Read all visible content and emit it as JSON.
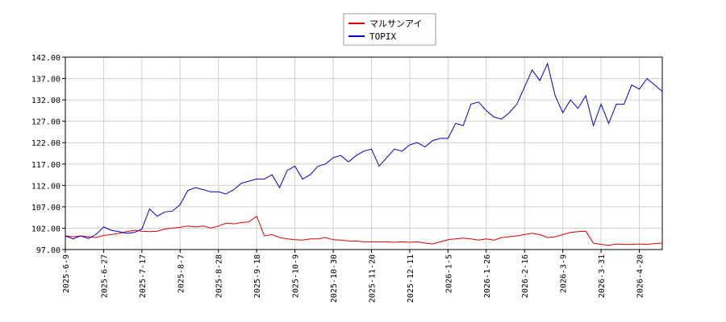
{
  "chart_data": {
    "type": "line",
    "categories": [
      "2025-6-9",
      null,
      null,
      null,
      null,
      "2025-6-27",
      null,
      null,
      null,
      null,
      "2025-7-17",
      null,
      null,
      null,
      null,
      "2025-8-7",
      null,
      null,
      null,
      null,
      "2025-8-28",
      null,
      null,
      null,
      null,
      "2025-9-18",
      null,
      null,
      null,
      null,
      "2025-10-9",
      null,
      null,
      null,
      null,
      "2025-10-30",
      null,
      null,
      null,
      null,
      "2025-11-20",
      null,
      null,
      null,
      null,
      "2025-12-11",
      null,
      null,
      null,
      null,
      "2026-1-5",
      null,
      null,
      null,
      null,
      "2026-1-26",
      null,
      null,
      null,
      null,
      "2026-2-16",
      null,
      null,
      null,
      null,
      "2026-3-9",
      null,
      null,
      null,
      null,
      "2026-3-31",
      null,
      null,
      null,
      null,
      "2026-4-20",
      null,
      null,
      null
    ],
    "series": [
      {
        "name": "マルサンアイ",
        "color": "#dd0000",
        "values": [
          100.2,
          100,
          100.2,
          100,
          99.8,
          100.3,
          100.5,
          100.8,
          101.2,
          101.5,
          101.3,
          101.2,
          101.3,
          101.8,
          102.0,
          102.2,
          102.5,
          102.3,
          102.5,
          102.0,
          102.5,
          103.2,
          103.0,
          103.3,
          103.5,
          104.8,
          100.2,
          100.5,
          99.8,
          99.5,
          99.3,
          99.2,
          99.5,
          99.5,
          99.8,
          99.3,
          99.2,
          99,
          99,
          98.8,
          98.8,
          98.8,
          98.8,
          98.7,
          98.8,
          98.7,
          98.8,
          98.5,
          98.3,
          98.8,
          99.3,
          99.5,
          99.7,
          99.5,
          99.2,
          99.5,
          99.2,
          99.8,
          100,
          100.2,
          100.5,
          100.8,
          100.5,
          99.8,
          100,
          100.5,
          101,
          101.2,
          101.3,
          98.5,
          98.2,
          98,
          98.3,
          98.2,
          98.2,
          98.3,
          98.2,
          98.4,
          98.5
        ]
      },
      {
        "name": "TOPIX",
        "color": "#0000cc",
        "values": [
          100.2,
          99.5,
          100.2,
          99.6,
          100.5,
          102.3,
          101.5,
          101.2,
          100.8,
          101.0,
          101.8,
          106.5,
          104.8,
          105.8,
          106.0,
          107.5,
          110.8,
          111.5,
          111.0,
          110.5,
          110.5,
          110.0,
          111.0,
          112.5,
          113.0,
          113.5,
          113.5,
          114.5,
          111.5,
          115.5,
          116.5,
          113.5,
          114.5,
          116.5,
          117.0,
          118.5,
          119.0,
          117.5,
          119.0,
          120.0,
          120.5,
          116.5,
          118.5,
          120.5,
          120.0,
          121.5,
          122.0,
          121.0,
          122.5,
          123.0,
          123.0,
          126.5,
          126.0,
          131.0,
          131.5,
          129.5,
          128.0,
          127.5,
          129.0,
          131.0,
          135.0,
          139.0,
          136.5,
          140.5,
          133.0,
          129.0,
          132.0,
          130.0,
          133.0,
          126.0,
          131.0,
          126.5,
          131.0,
          131.0,
          135.5,
          134.5,
          137.0,
          135.5,
          134.0
        ]
      }
    ],
    "ylim": [
      97,
      142
    ],
    "yticks": [
      {
        "value": 97,
        "label": "97.00"
      },
      {
        "value": 102,
        "label": "102.00"
      },
      {
        "value": 107,
        "label": "107.00"
      },
      {
        "value": 112,
        "label": "112.00"
      },
      {
        "value": 117,
        "label": "117.00"
      },
      {
        "value": 122,
        "label": "122.00"
      },
      {
        "value": 127,
        "label": "127.00"
      },
      {
        "value": 132,
        "label": "132.00"
      },
      {
        "value": 137,
        "label": "137.00"
      },
      {
        "value": 142,
        "label": "142.00"
      }
    ],
    "grid": true,
    "legend": "top"
  }
}
